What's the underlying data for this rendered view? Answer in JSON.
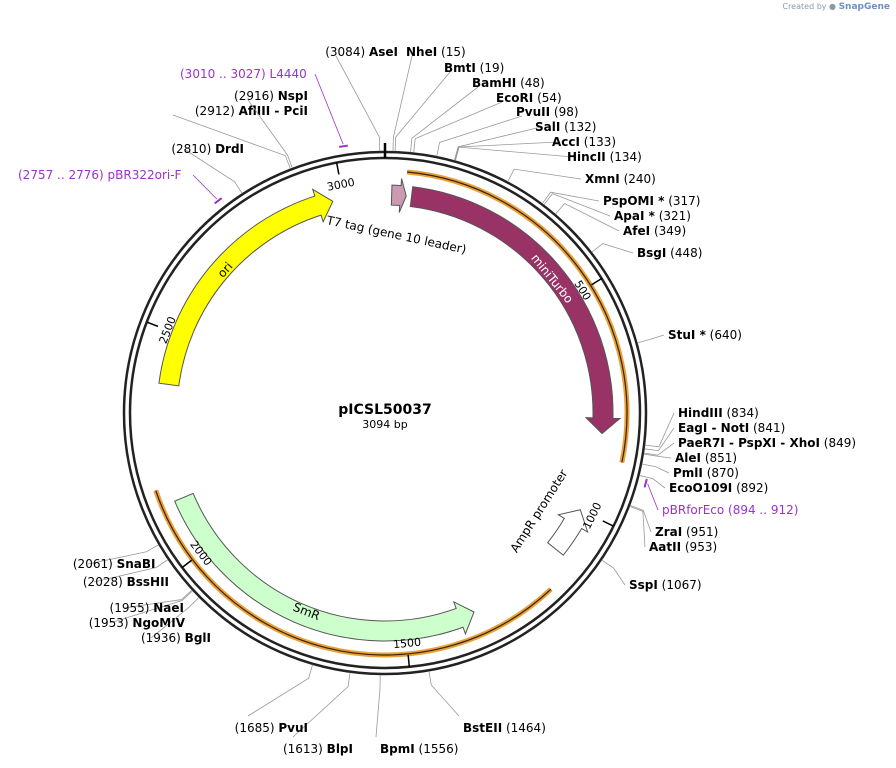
{
  "credit": {
    "prefix": "Created by",
    "brand": "SnapGene"
  },
  "plasmid": {
    "name": "pICSL50037",
    "length_label": "3094 bp",
    "length": 3094
  },
  "ticks": [
    {
      "pos": 500,
      "label": "500"
    },
    {
      "pos": 1000,
      "label": "1000"
    },
    {
      "pos": 1500,
      "label": "1500"
    },
    {
      "pos": 2000,
      "label": "2000"
    },
    {
      "pos": 2500,
      "label": "2500"
    },
    {
      "pos": 3000,
      "label": "3000"
    }
  ],
  "features": [
    {
      "name": "miniTurbo",
      "start": 60,
      "end": 820,
      "dir": 1,
      "color": "#993366",
      "ring": "inner",
      "label_in": true
    },
    {
      "name": "T7 tag (gene 10 leader)",
      "start": 15,
      "end": 48,
      "dir": 1,
      "color": "#cc99b3",
      "ring": "inner",
      "label_in": false
    },
    {
      "name": "AmpR promoter",
      "start": 1000,
      "end": 1105,
      "dir": -1,
      "color": "#ffffff",
      "ring": "inner",
      "label_in": false
    },
    {
      "name": "SmR",
      "start": 1340,
      "end": 2125,
      "dir": -1,
      "color": "#ccffcc",
      "ring": "inner",
      "label_in": true
    },
    {
      "name": "ori",
      "start": 2385,
      "end": 2975,
      "dir": 1,
      "color": "#ffff00",
      "ring": "inner",
      "label_in": true
    }
  ],
  "enzymes": [
    {
      "name": "NheI",
      "pos": "15",
      "site": 15
    },
    {
      "name": "BmtI",
      "pos": "19",
      "site": 19
    },
    {
      "name": "BamHI",
      "pos": "48",
      "site": 48
    },
    {
      "name": "EcoRI",
      "pos": "54",
      "site": 54
    },
    {
      "name": "PvuII",
      "pos": "98",
      "site": 98
    },
    {
      "name": "SalI",
      "pos": "132",
      "site": 132
    },
    {
      "name": "AccI",
      "pos": "133",
      "site": 133
    },
    {
      "name": "HincII",
      "pos": "134",
      "site": 134
    },
    {
      "name": "XmnI",
      "pos": "240",
      "site": 240
    },
    {
      "name": "PspOMI *",
      "pos": "317",
      "site": 317
    },
    {
      "name": "ApaI *",
      "pos": "321",
      "site": 321
    },
    {
      "name": "AfeI",
      "pos": "349",
      "site": 349
    },
    {
      "name": "BsgI",
      "pos": "448",
      "site": 448
    },
    {
      "name": "StuI *",
      "pos": "640",
      "site": 640
    },
    {
      "name": "HindIII",
      "pos": "834",
      "site": 834
    },
    {
      "name": "EagI  - NotI",
      "pos": "841",
      "site": 841
    },
    {
      "name": "PaeR7I  - PspXI  - XhoI",
      "pos": "849",
      "site": 849
    },
    {
      "name": "AleI",
      "pos": "851",
      "site": 851
    },
    {
      "name": "PmlI",
      "pos": "870",
      "site": 870
    },
    {
      "name": "EcoO109I",
      "pos": "892",
      "site": 892
    },
    {
      "name": "ZraI",
      "pos": "951",
      "site": 951
    },
    {
      "name": "AatII",
      "pos": "953",
      "site": 953
    },
    {
      "name": "SspI",
      "pos": "1067",
      "site": 1067
    },
    {
      "name": "BstEII",
      "pos": "1464",
      "site": 1464
    },
    {
      "name": "BpmI",
      "pos": "1556",
      "site": 1556
    },
    {
      "name": "BlpI",
      "pos": "1613",
      "site": 1613
    },
    {
      "name": "PvuI",
      "pos": "1685",
      "site": 1685
    },
    {
      "name": "BglI",
      "pos": "1936",
      "site": 1936
    },
    {
      "name": "NgoMIV",
      "pos": "1953",
      "site": 1953
    },
    {
      "name": "NaeI",
      "pos": "1955",
      "site": 1955
    },
    {
      "name": "BssHII",
      "pos": "2028",
      "site": 2028
    },
    {
      "name": "SnaBI",
      "pos": "2061",
      "site": 2061
    },
    {
      "name": "DrdI",
      "pos": "2810",
      "site": 2810
    },
    {
      "name": "AflIII  - PciI",
      "pos": "2912",
      "site": 2912
    },
    {
      "name": "NspI",
      "pos": "2916",
      "site": 2916
    },
    {
      "name": "AseI",
      "pos": "3084",
      "site": 3084
    }
  ],
  "primers": [
    {
      "name": "L4440",
      "range": "3010 .. 3027",
      "site": 3018
    },
    {
      "name": "pBR322ori-F",
      "range": "2757 .. 2776",
      "site": 2766
    },
    {
      "name": "pBRforEco",
      "range": "894 .. 912",
      "site": 903
    }
  ]
}
